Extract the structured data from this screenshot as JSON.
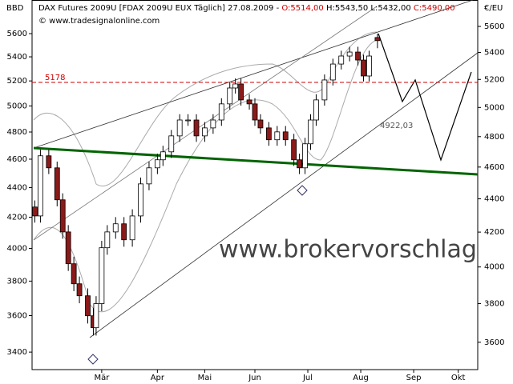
{
  "header": {
    "name": "DAX Futures 2009U [FDAX 2009U EUX  Täglich] 27.08.2009 -",
    "ohlc_labels": [
      "O:5514,00",
      "H:5543,50",
      "L:5432,00",
      "C:5490,00"
    ],
    "copyright": "© www.tradesignalonline.com",
    "watermark": "www.brokervorschlag.c"
  },
  "chart_data": {
    "type": "candlestick",
    "ylabel": "BBD",
    "y2label": "€/EU",
    "log": true,
    "xlim": [
      0,
      160
    ],
    "xticks": [
      {
        "value": 25,
        "label": "Mär"
      },
      {
        "value": 45,
        "label": "Apr"
      },
      {
        "value": 62,
        "label": "Mai"
      },
      {
        "value": 80,
        "label": "Jun"
      },
      {
        "value": 99,
        "label": "Jul"
      },
      {
        "value": 118,
        "label": "Aug"
      },
      {
        "value": 137,
        "label": "Sep"
      },
      {
        "value": 153,
        "label": "Okt"
      }
    ],
    "ylim": [
      3308,
      5903
    ],
    "yticks": [
      3400,
      3600,
      3800,
      4000,
      4200,
      4400,
      4600,
      4800,
      5000,
      5200,
      5400,
      5600
    ],
    "y2lim": [
      3465,
      5811
    ],
    "y2ticks": [
      3600,
      3800,
      4000,
      4200,
      4400,
      4600,
      4800,
      5000,
      5200,
      5400,
      5600
    ],
    "up_color": "#ffffff",
    "down_color": "#8b1a1a",
    "x": [
      1,
      3,
      6,
      9,
      11,
      13,
      15,
      17,
      20,
      22,
      23,
      25,
      27,
      30,
      33,
      36,
      39,
      42,
      45,
      47,
      50,
      53,
      56,
      59,
      62,
      65,
      68,
      71,
      73,
      75,
      78,
      80,
      82,
      85,
      88,
      91,
      94,
      96,
      98,
      100,
      102,
      105,
      108,
      111,
      114,
      117,
      119,
      121,
      124
    ],
    "open": [
      4350,
      4296,
      4673,
      4595,
      4394,
      4201,
      4018,
      3907,
      3842,
      3736,
      3674,
      3800,
      4109,
      4201,
      4249,
      4155,
      4296,
      4493,
      4595,
      4647,
      4699,
      4805,
      4913,
      4913,
      4805,
      4859,
      4913,
      5025,
      5138,
      5167,
      5053,
      5025,
      4913,
      4859,
      4779,
      4832,
      4779,
      4647,
      4595,
      4752,
      4913,
      5053,
      5196,
      5313,
      5373,
      5403,
      5343,
      5225,
      5514
    ],
    "high": [
      4390,
      4713,
      4713,
      4635,
      4434,
      4241,
      4058,
      3947,
      3882,
      3776,
      3840,
      4149,
      4241,
      4289,
      4289,
      4336,
      4533,
      4635,
      4687,
      4739,
      4845,
      4953,
      4953,
      4953,
      4899,
      4953,
      5065,
      5178,
      5207,
      5207,
      5093,
      5065,
      4953,
      4899,
      4872,
      4872,
      4819,
      4687,
      4792,
      4953,
      5093,
      5236,
      5353,
      5413,
      5443,
      5443,
      5383,
      5413,
      5543.5
    ],
    "low": [
      4256,
      4256,
      4555,
      4354,
      4161,
      3978,
      3867,
      3802,
      3696,
      3634,
      3634,
      3760,
      4069,
      4161,
      4115,
      4115,
      4256,
      4453,
      4555,
      4607,
      4659,
      4765,
      4873,
      4765,
      4765,
      4819,
      4873,
      4985,
      5098,
      5013,
      4985,
      4873,
      4819,
      4739,
      4739,
      4739,
      4607,
      4555,
      4555,
      4712,
      4873,
      5013,
      5156,
      5273,
      5333,
      5303,
      5185,
      5185,
      5432
    ],
    "close": [
      4296,
      4673,
      4595,
      4394,
      4201,
      4018,
      3907,
      3842,
      3736,
      3674,
      3800,
      4109,
      4201,
      4249,
      4155,
      4296,
      4493,
      4595,
      4647,
      4699,
      4805,
      4913,
      4913,
      4805,
      4859,
      4913,
      5025,
      5138,
      5167,
      5053,
      5025,
      4913,
      4859,
      4779,
      4832,
      4779,
      4647,
      4595,
      4752,
      4913,
      5053,
      5196,
      5313,
      5373,
      5403,
      5343,
      5225,
      5373,
      5490
    ],
    "hline": {
      "value": 5178,
      "label": "5178",
      "color": "#cc0000"
    },
    "annotation": "4922,03"
  }
}
